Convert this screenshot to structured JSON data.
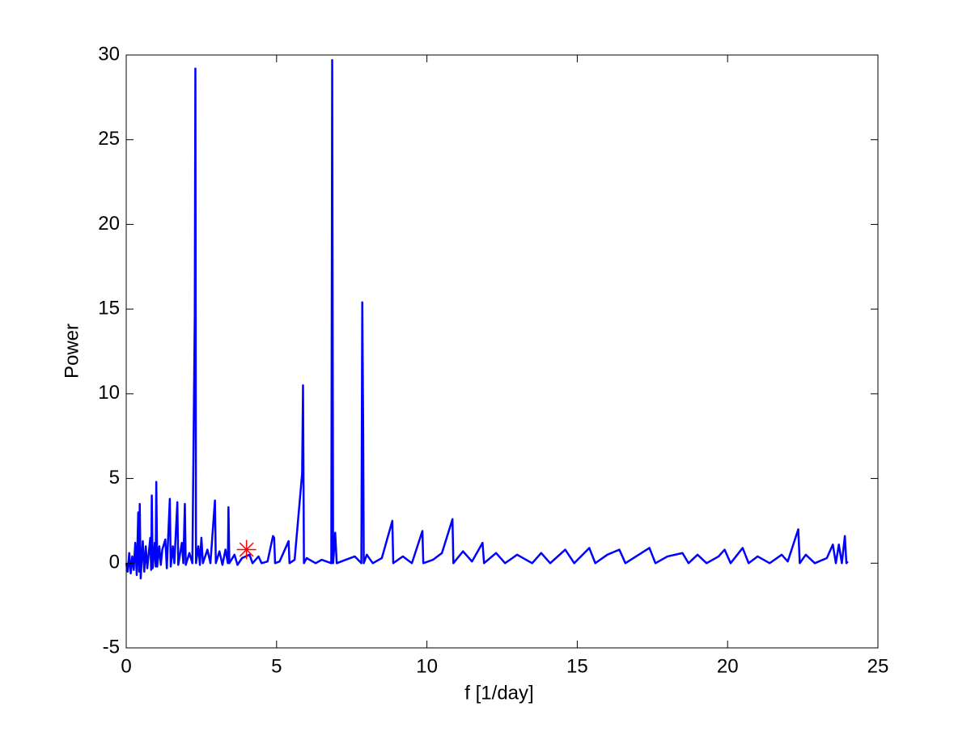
{
  "chart_data": {
    "type": "line",
    "xlabel": "f [1/day]",
    "ylabel": "Power",
    "xlim": [
      0,
      25
    ],
    "ylim": [
      -5,
      30
    ],
    "xticks": [
      0,
      5,
      10,
      15,
      20,
      25
    ],
    "yticks": [
      -5,
      0,
      5,
      10,
      15,
      20,
      25,
      30
    ],
    "color": "#0000ff",
    "x": [
      0,
      0.05,
      0.1,
      0.15,
      0.2,
      0.25,
      0.3,
      0.35,
      0.4,
      0.43,
      0.45,
      0.48,
      0.55,
      0.6,
      0.65,
      0.7,
      0.8,
      0.83,
      0.85,
      0.88,
      0.95,
      0.98,
      1.0,
      1.03,
      1.1,
      1.15,
      1.2,
      1.3,
      1.35,
      1.45,
      1.48,
      1.55,
      1.6,
      1.7,
      1.73,
      1.85,
      1.9,
      1.95,
      1.98,
      2.1,
      2.2,
      2.28,
      2.3,
      2.32,
      2.4,
      2.45,
      2.5,
      2.55,
      2.7,
      2.8,
      2.95,
      2.98,
      3.1,
      3.2,
      3.3,
      3.38,
      3.4,
      3.43,
      3.6,
      3.7,
      3.85,
      4.1,
      4.2,
      4.4,
      4.5,
      4.7,
      4.88,
      4.92,
      4.95,
      5.1,
      5.4,
      5.43,
      5.6,
      5.85,
      5.88,
      5.91,
      6.0,
      6.3,
      6.5,
      6.82,
      6.85,
      6.88,
      6.95,
      7.0,
      7.3,
      7.6,
      7.82,
      7.85,
      7.88,
      7.9,
      8.0,
      8.2,
      8.5,
      8.85,
      8.88,
      9.2,
      9.5,
      9.85,
      9.88,
      10.2,
      10.5,
      10.85,
      10.88,
      11.2,
      11.5,
      11.85,
      11.9,
      12.3,
      12.6,
      13.0,
      13.5,
      13.8,
      14.1,
      14.6,
      14.9,
      15.4,
      15.6,
      16.0,
      16.4,
      16.6,
      17.4,
      17.6,
      18.0,
      18.5,
      18.7,
      19.0,
      19.3,
      19.7,
      19.9,
      20.1,
      20.5,
      20.7,
      21.0,
      21.4,
      21.8,
      22.0,
      22.35,
      22.4,
      22.6,
      22.9,
      23.3,
      23.5,
      23.6,
      23.7,
      23.8,
      23.9,
      23.95,
      24.0
    ],
    "y": [
      0,
      -0.5,
      0.6,
      -0.6,
      0.4,
      -0.4,
      1.2,
      -0.7,
      3.0,
      -0.5,
      3.5,
      -0.9,
      1.3,
      -0.5,
      1.0,
      -0.3,
      1.5,
      -0.4,
      4.0,
      -0.3,
      1.2,
      -0.2,
      4.8,
      -0.2,
      1.0,
      -0.1,
      0.8,
      1.4,
      -0.3,
      3.8,
      -0.2,
      1.0,
      0,
      3.6,
      -0.1,
      1.2,
      0,
      3.5,
      -0.1,
      0.6,
      0,
      14.6,
      29.2,
      0,
      1.0,
      -0.1,
      1.5,
      0,
      0.8,
      0,
      3.7,
      0,
      0.7,
      -0.1,
      0.8,
      0,
      3.3,
      0,
      0.5,
      -0.1,
      0.3,
      0.5,
      0,
      0.4,
      0,
      0.1,
      1.6,
      1.5,
      0,
      0.1,
      1.3,
      0,
      0.2,
      5.3,
      10.5,
      0,
      0.3,
      0,
      0.2,
      0,
      29.7,
      0,
      1.8,
      0,
      0.2,
      0.4,
      0,
      15.4,
      8,
      0,
      0.5,
      0,
      0.3,
      2.5,
      0,
      0.4,
      0,
      1.9,
      0,
      0.2,
      0.6,
      2.6,
      0,
      0.7,
      0.1,
      1.2,
      0,
      0.6,
      0,
      0.5,
      0,
      0.6,
      0,
      0.8,
      0,
      0.9,
      0,
      0.5,
      0.8,
      0,
      0.9,
      0,
      0.4,
      0.6,
      0,
      0.5,
      0,
      0.4,
      0.8,
      0,
      0.9,
      0,
      0.4,
      0,
      0.5,
      0.1,
      2.0,
      0,
      0.5,
      0,
      0.3,
      1.1,
      0,
      1.1,
      0,
      1.6,
      0,
      0.1
    ],
    "marker": {
      "x": 4.0,
      "y": 0.8,
      "color": "#ff0000"
    }
  }
}
